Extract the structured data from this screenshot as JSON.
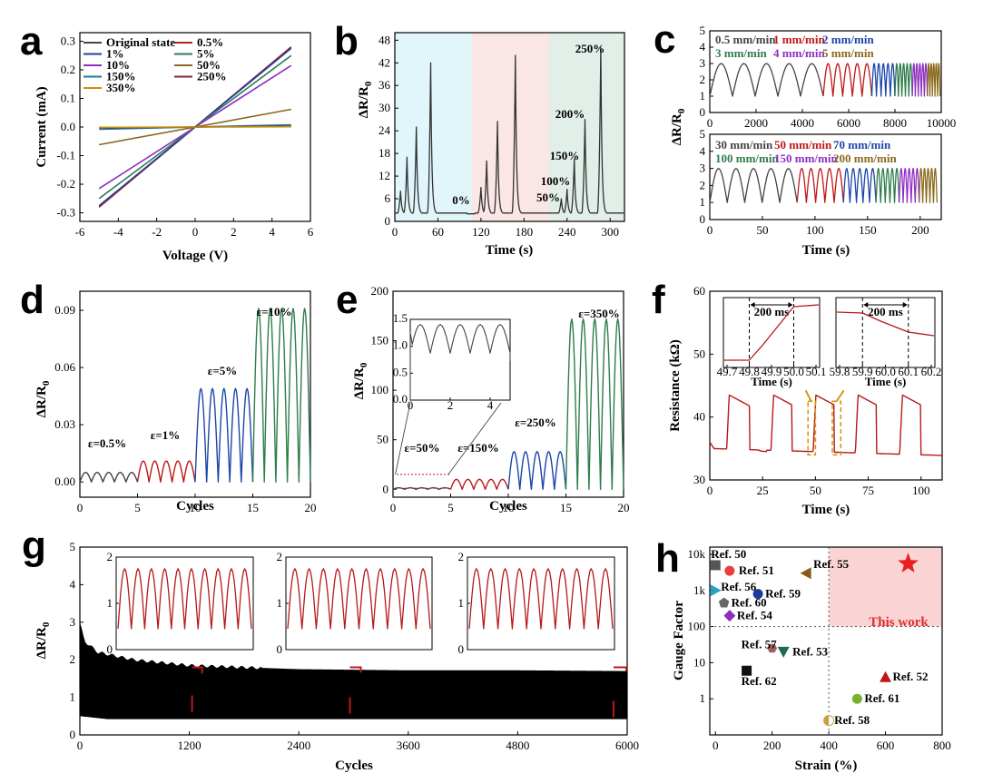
{
  "chart_data": [
    {
      "panel": "a",
      "type": "line",
      "xlabel": "Voltage (V)",
      "ylabel": "Current (mA)",
      "xlim": [
        -6,
        6
      ],
      "ylim": [
        -0.33,
        0.33
      ],
      "xticks": [
        "-6",
        "-4",
        "-2",
        "0",
        "2",
        "4",
        "6"
      ],
      "yticks": [
        "-0.3",
        "-0.2",
        "-0.1",
        "0.0",
        "0.1",
        "0.2",
        "0.3"
      ],
      "series": [
        {
          "name": "Original state",
          "color": "#444444",
          "x": [
            -5,
            5
          ],
          "y": [
            -0.28,
            0.28
          ]
        },
        {
          "name": "0.5%",
          "color": "#b22222",
          "x": [
            -5,
            5
          ],
          "y": [
            -0.28,
            0.28
          ]
        },
        {
          "name": "1%",
          "color": "#1f3f9c",
          "x": [
            -5,
            5
          ],
          "y": [
            -0.275,
            0.275
          ]
        },
        {
          "name": "5%",
          "color": "#2e7d5b",
          "x": [
            -5,
            5
          ],
          "y": [
            -0.25,
            0.25
          ]
        },
        {
          "name": "10%",
          "color": "#8e2fc2",
          "x": [
            -5,
            5
          ],
          "y": [
            -0.215,
            0.215
          ]
        },
        {
          "name": "50%",
          "color": "#8a6a1c",
          "x": [
            -5,
            5
          ],
          "y": [
            -0.062,
            0.062
          ]
        },
        {
          "name": "150%",
          "color": "#1a7aa0",
          "x": [
            -5,
            5
          ],
          "y": [
            -0.008,
            0.008
          ]
        },
        {
          "name": "250%",
          "color": "#7a2a3a",
          "x": [
            -5,
            5
          ],
          "y": [
            -0.003,
            0.003
          ]
        },
        {
          "name": "350%",
          "color": "#c09010",
          "x": [
            -5,
            5
          ],
          "y": [
            -0.001,
            0.001
          ]
        }
      ]
    },
    {
      "panel": "b",
      "type": "line",
      "xlabel": "Time (s)",
      "ylabel": "ΔR/R0",
      "xlim": [
        0,
        320
      ],
      "ylim": [
        0,
        50
      ],
      "xticks": [
        "0",
        "60",
        "120",
        "180",
        "240",
        "300"
      ],
      "yticks": [
        "0",
        "6",
        "12",
        "18",
        "24",
        "30",
        "36",
        "42",
        "48"
      ],
      "regions": [
        {
          "from": 0,
          "to": 107,
          "color": "#e0f6fb"
        },
        {
          "from": 107,
          "to": 215,
          "color": "#fbe6e6"
        },
        {
          "from": 215,
          "to": 320,
          "color": "#e2efe8"
        }
      ],
      "peaks": [
        [
          8,
          6
        ],
        [
          17,
          15
        ],
        [
          30,
          23
        ],
        [
          50,
          40
        ],
        [
          120,
          7
        ],
        [
          128,
          14
        ],
        [
          143,
          24.5
        ],
        [
          168,
          42
        ],
        [
          232,
          4
        ],
        [
          240,
          6.5
        ],
        [
          250,
          14.5
        ],
        [
          265,
          25
        ],
        [
          287,
          44
        ]
      ],
      "annotations": [
        "0%",
        "50%",
        "100%",
        "150%",
        "200%",
        "250%"
      ],
      "color": "#333333"
    },
    {
      "panel": "c-top",
      "type": "line",
      "xlabel": "",
      "ylabel": "ΔR/R0",
      "xlim": [
        0,
        10000
      ],
      "ylim": [
        0,
        5
      ],
      "xticks": [
        "0",
        "2000",
        "4000",
        "6000",
        "8000",
        "10000"
      ],
      "yticks": [
        "0",
        "1",
        "2",
        "3",
        "4",
        "5"
      ],
      "legend": [
        {
          "label": "0.5 mm/min",
          "color": "#444444"
        },
        {
          "label": "1 mm/min",
          "color": "#c01818"
        },
        {
          "label": "2 mm/min",
          "color": "#1c46a8"
        },
        {
          "label": "3 mm/min",
          "color": "#2e7d4b"
        },
        {
          "label": "4 mm/min",
          "color": "#8e2fc2"
        },
        {
          "label": "5 mm/min",
          "color": "#8a6a1c"
        }
      ],
      "segments": [
        {
          "from": 0,
          "to": 4900,
          "cycles": 5,
          "color": "#444444"
        },
        {
          "from": 4900,
          "to": 7000,
          "cycles": 5,
          "color": "#c01818"
        },
        {
          "from": 7000,
          "to": 8000,
          "cycles": 5,
          "color": "#1c46a8"
        },
        {
          "from": 8000,
          "to": 8750,
          "cycles": 5,
          "color": "#2e7d4b"
        },
        {
          "from": 8750,
          "to": 9400,
          "cycles": 5,
          "color": "#8e2fc2"
        },
        {
          "from": 9400,
          "to": 9950,
          "cycles": 5,
          "color": "#8a6a1c"
        }
      ],
      "min": 1.0,
      "max": 3.0
    },
    {
      "panel": "c-bottom",
      "type": "line",
      "xlabel": "Time (s)",
      "ylabel": "",
      "xlim": [
        0,
        220
      ],
      "ylim": [
        0,
        5
      ],
      "xticks": [
        "0",
        "50",
        "100",
        "150",
        "200"
      ],
      "yticks": [
        "0",
        "1",
        "2",
        "3",
        "4",
        "5"
      ],
      "legend": [
        {
          "label": "30 mm/min",
          "color": "#444444"
        },
        {
          "label": "50 mm/min",
          "color": "#c01818"
        },
        {
          "label": "70 mm/min",
          "color": "#1c46a8"
        },
        {
          "label": "100 mm/min",
          "color": "#2e7d4b"
        },
        {
          "label": "150 mm/min",
          "color": "#8e2fc2"
        },
        {
          "label": "200 mm/min",
          "color": "#8a6a1c"
        }
      ],
      "segments": [
        {
          "from": 0,
          "to": 83,
          "cycles": 5,
          "color": "#444444"
        },
        {
          "from": 83,
          "to": 127,
          "cycles": 5,
          "color": "#c01818"
        },
        {
          "from": 127,
          "to": 158,
          "cycles": 5,
          "color": "#1c46a8"
        },
        {
          "from": 158,
          "to": 180,
          "cycles": 5,
          "color": "#2e7d4b"
        },
        {
          "from": 180,
          "to": 199,
          "cycles": 5,
          "color": "#8e2fc2"
        },
        {
          "from": 199,
          "to": 216,
          "cycles": 5,
          "color": "#8a6a1c"
        }
      ],
      "min": 1.0,
      "max": 3.0
    },
    {
      "panel": "d",
      "type": "line",
      "xlabel": "Cycles",
      "ylabel": "ΔR/R0",
      "xlim": [
        0,
        20
      ],
      "ylim": [
        -0.008,
        0.1
      ],
      "xticks": [
        "0",
        "5",
        "10",
        "15",
        "20"
      ],
      "yticks": [
        "0.00",
        "0.03",
        "0.06",
        "0.09"
      ],
      "segments": [
        {
          "from": 0,
          "to": 5,
          "peak": 0.005,
          "color": "#444444",
          "label": "ε=0.5%"
        },
        {
          "from": 5,
          "to": 10,
          "peak": 0.011,
          "color": "#c01818",
          "label": "ε=1%"
        },
        {
          "from": 10,
          "to": 15,
          "peak": 0.049,
          "color": "#1c46a8",
          "label": "ε=5%"
        },
        {
          "from": 15,
          "to": 20,
          "peak": 0.091,
          "color": "#2e7d4b",
          "label": "ε=10%"
        }
      ]
    },
    {
      "panel": "e",
      "type": "line",
      "xlabel": "Cycles",
      "ylabel": "ΔR/R0",
      "xlim": [
        0,
        20
      ],
      "ylim": [
        -8,
        200
      ],
      "xticks": [
        "0",
        "5",
        "10",
        "15",
        "20"
      ],
      "yticks": [
        "0",
        "50",
        "100",
        "150",
        "200"
      ],
      "segments": [
        {
          "from": 0,
          "to": 5,
          "peak": 1.5,
          "color": "#444444",
          "label": "ε=50%"
        },
        {
          "from": 5,
          "to": 10,
          "peak": 10,
          "color": "#c01818",
          "label": "ε=150%"
        },
        {
          "from": 10,
          "to": 15,
          "peak": 38,
          "color": "#1c46a8",
          "label": "ε=250%"
        },
        {
          "from": 15,
          "to": 20,
          "peak": 172,
          "color": "#2e7d4b",
          "label": "ε=350%"
        }
      ],
      "inset": {
        "xlim": [
          0,
          5
        ],
        "ylim": [
          0,
          1.5
        ],
        "xticks": [
          "0",
          "2",
          "4"
        ],
        "yticks": [
          "0.0",
          "0.5",
          "1.0",
          "1.5"
        ]
      }
    },
    {
      "panel": "f",
      "type": "line",
      "xlabel": "Time (s)",
      "ylabel": "Resistance (kΩ)",
      "xlim": [
        0,
        110
      ],
      "ylim": [
        30,
        60
      ],
      "xticks": [
        "0",
        "25",
        "50",
        "75",
        "100"
      ],
      "yticks": [
        "30",
        "40",
        "50",
        "60"
      ],
      "color": "#b81818",
      "cycles": [
        [
          8,
          19
        ],
        [
          29,
          39
        ],
        [
          49,
          59
        ],
        [
          69,
          79
        ],
        [
          90,
          100
        ]
      ],
      "insets": [
        {
          "xticks": [
            "49.7",
            "49.8",
            "49.9",
            "50.0",
            "50.1"
          ],
          "xlabel": "Time (s)",
          "label": "200 ms"
        },
        {
          "xticks": [
            "59.8",
            "59.9",
            "60.0",
            "60.1",
            "60.2"
          ],
          "xlabel": "Time (s)",
          "label": "200 ms"
        }
      ]
    },
    {
      "panel": "g",
      "type": "area",
      "xlabel": "Cycles",
      "ylabel": "ΔR/R0",
      "xlim": [
        0,
        6000
      ],
      "ylim": [
        0,
        5
      ],
      "xticks": [
        "0",
        "1200",
        "2400",
        "3600",
        "4800",
        "6000"
      ],
      "yticks": [
        "0",
        "1",
        "2",
        "3",
        "4",
        "5"
      ],
      "envelope_upper": [
        [
          0,
          3.0
        ],
        [
          50,
          2.5
        ],
        [
          200,
          2.2
        ],
        [
          600,
          2.0
        ],
        [
          1200,
          1.85
        ],
        [
          2400,
          1.75
        ],
        [
          3600,
          1.72
        ],
        [
          4800,
          1.72
        ],
        [
          6000,
          1.7
        ]
      ],
      "envelope_lower": [
        [
          0,
          0.5
        ],
        [
          300,
          0.42
        ],
        [
          6000,
          0.42
        ]
      ],
      "insets": [
        {
          "ylim": [
            0,
            2
          ],
          "yticks": [
            "0",
            "1",
            "2"
          ]
        },
        {
          "ylim": [
            0,
            2
          ],
          "yticks": [
            "0",
            "1",
            "2"
          ]
        },
        {
          "ylim": [
            0,
            2
          ],
          "yticks": [
            "0",
            "1",
            "2"
          ]
        }
      ]
    },
    {
      "panel": "h",
      "type": "scatter",
      "xlabel": "Strain (%)",
      "ylabel": "Gauge Factor",
      "xlim": [
        -20,
        800
      ],
      "yscale": "log",
      "ylim": [
        0.1,
        10000
      ],
      "xticks": [
        "0",
        "200",
        "400",
        "600",
        "800"
      ],
      "yticks": [
        "1",
        "10",
        "100",
        "1k",
        "10k"
      ],
      "highlight": {
        "label": "This work",
        "color": "#fad4d4"
      },
      "points": [
        {
          "label": "Ref. 50",
          "x": 0,
          "y": 5000,
          "shape": "square",
          "color": "#555555"
        },
        {
          "label": "Ref. 51",
          "x": 50,
          "y": 3500,
          "shape": "circle",
          "color": "#e84040"
        },
        {
          "label": "Ref. 55",
          "x": 320,
          "y": 3000,
          "shape": "triangle-left",
          "color": "#8a5a1c"
        },
        {
          "label": "Ref. 56",
          "x": 0,
          "y": 1000,
          "shape": "triangle-right",
          "color": "#2aa0c8"
        },
        {
          "label": "Ref. 59",
          "x": 150,
          "y": 800,
          "shape": "circle",
          "color": "#1c3a9c"
        },
        {
          "label": "Ref. 60",
          "x": 30,
          "y": 450,
          "shape": "pentagon",
          "color": "#666666"
        },
        {
          "label": "Ref. 54",
          "x": 50,
          "y": 200,
          "shape": "diamond",
          "color": "#8e2fc2"
        },
        {
          "label": "Ref. 57",
          "x": 200,
          "y": 25,
          "shape": "hexagon",
          "color": "#a06060"
        },
        {
          "label": "Ref. 53",
          "x": 240,
          "y": 20,
          "shape": "triangle-down",
          "color": "#1a6a5a"
        },
        {
          "label": "Ref. 62",
          "x": 110,
          "y": 6,
          "shape": "square",
          "color": "#111111"
        },
        {
          "label": "Ref. 52",
          "x": 600,
          "y": 4,
          "shape": "triangle-up",
          "color": "#c01818"
        },
        {
          "label": "Ref. 61",
          "x": 500,
          "y": 1,
          "shape": "circle",
          "color": "#7ab030"
        },
        {
          "label": "Ref. 58",
          "x": 400,
          "y": 0.25,
          "shape": "half-circle",
          "color": "#c8a040"
        },
        {
          "label": "This work",
          "x": 680,
          "y": 5500,
          "shape": "star",
          "color": "#e82020"
        }
      ]
    }
  ],
  "labels": {
    "a": "a",
    "b": "b",
    "c": "c",
    "d": "d",
    "e": "e",
    "f": "f",
    "g": "g",
    "h": "h",
    "a_x": "Voltage (V)",
    "a_y": "Current (mA)",
    "b_x": "Time (s)",
    "b_y": "ΔR/R",
    "c_x": "Time (s)",
    "c_y": "ΔR/R",
    "d_x": "Cycles",
    "d_y": "ΔR/R",
    "e_x": "Cycles",
    "e_y": "ΔR/R",
    "f_x": "Time (s)",
    "f_y": "Resistance (kΩ)",
    "g_x": "Cycles",
    "g_y": "ΔR/R",
    "h_x": "Strain (%)",
    "h_y": "Gauge Factor",
    "sub0": "0",
    "b_ann": [
      "0%",
      "50%",
      "100%",
      "150%",
      "200%",
      "250%"
    ],
    "f_inset_x": "Time (s)",
    "f_inset_ms": "200 ms",
    "this_work": "This work"
  }
}
